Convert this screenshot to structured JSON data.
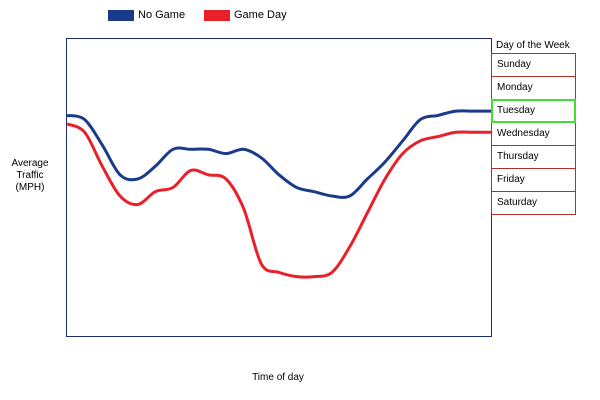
{
  "chart_data": {
    "type": "line",
    "title": "",
    "xlabel": "Time of day",
    "ylabel": "Average Traffic (MPH)",
    "grid": false,
    "legend_placement": "top",
    "xlim": [
      0,
      24
    ],
    "ylim": [
      0,
      70
    ],
    "series": [
      {
        "name": "No Game",
        "color": "#1a3a8a",
        "x": [
          0,
          1,
          2,
          3,
          4,
          5,
          6,
          7,
          8,
          9,
          10,
          11,
          12,
          13,
          14,
          15,
          16,
          17,
          18,
          19,
          20,
          21,
          22,
          23,
          24
        ],
        "values": [
          52,
          51,
          45,
          38,
          37,
          40,
          44,
          44,
          44,
          43,
          44,
          42,
          38,
          35,
          34,
          33,
          33,
          37,
          41,
          46,
          51,
          52,
          53,
          53,
          53
        ]
      },
      {
        "name": "Game Day",
        "color": "#e8202a",
        "x": [
          0,
          1,
          2,
          3,
          4,
          5,
          6,
          7,
          8,
          9,
          10,
          11,
          12,
          13,
          14,
          15,
          16,
          17,
          18,
          19,
          20,
          21,
          22,
          23,
          24
        ],
        "values": [
          50,
          48,
          40,
          33,
          31,
          34,
          35,
          39,
          38,
          37,
          30,
          17,
          15,
          14,
          14,
          15,
          21,
          29,
          37,
          43,
          46,
          47,
          48,
          48,
          48
        ]
      }
    ]
  },
  "legend": {
    "items": [
      {
        "label": "No Game",
        "color": "#1a3a8a"
      },
      {
        "label": "Game Day",
        "color": "#e8202a"
      }
    ]
  },
  "axes": {
    "ylabel_lines": [
      "Average",
      "Traffic",
      "(MPH)"
    ],
    "xlabel": "Time of day"
  },
  "day_selector": {
    "title": "Day of the Week",
    "selected_index": 2,
    "days": [
      "Sunday",
      "Monday",
      "Tuesday",
      "Wednesday",
      "Thursday",
      "Friday",
      "Saturday"
    ]
  }
}
